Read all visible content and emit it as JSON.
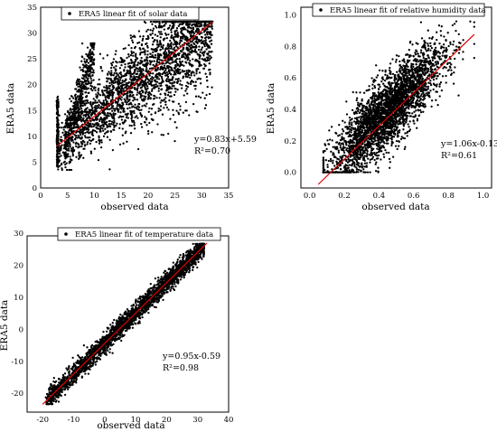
{
  "chart_data": [
    {
      "id": "solar",
      "type": "scatter",
      "legend": "ERA5 linear fit of solar data",
      "xlabel": "observed data",
      "ylabel": "ERA5 data",
      "xlim": [
        0,
        35
      ],
      "ylim": [
        0,
        35
      ],
      "xticks": [
        "0",
        "5",
        "10",
        "15",
        "20",
        "25",
        "30",
        "35"
      ],
      "yticks": [
        "0",
        "5",
        "10",
        "15",
        "20",
        "25",
        "30",
        "35"
      ],
      "fit": {
        "slope": 0.83,
        "intercept": 5.59,
        "x_range": [
          3,
          32
        ]
      },
      "equation": "y=0.83x+5.59",
      "r2": "R²=0.70",
      "legend_position": "top-left",
      "grid": false,
      "point_color": "#000000",
      "fit_color": "#e00000"
    },
    {
      "id": "humidity",
      "type": "scatter",
      "legend": "ERA5 linear fit of relative humidity data",
      "xlabel": "observed data",
      "ylabel": "ERA5 data",
      "xlim": [
        -0.05,
        1.05
      ],
      "ylim": [
        -0.1,
        1.05
      ],
      "xticks": [
        "0.0",
        "0.2",
        "0.4",
        "0.6",
        "0.8",
        "1.0"
      ],
      "yticks": [
        "0.0",
        "0.2",
        "0.4",
        "0.6",
        "0.8",
        "1.0"
      ],
      "fit": {
        "slope": 1.06,
        "intercept": -0.13,
        "x_range": [
          0.05,
          0.95
        ]
      },
      "equation": "y=1.06x-0.13",
      "r2": "R²=0.61",
      "legend_position": "top",
      "grid": false,
      "point_color": "#000000",
      "fit_color": "#e00000"
    },
    {
      "id": "temperature",
      "type": "scatter",
      "legend": "ERA5 linear fit of temperature data",
      "xlabel": "observed data",
      "ylabel": "ERA5 data",
      "xlim": [
        -25,
        40
      ],
      "ylim": [
        -22,
        33
      ],
      "xticks": [
        "-20",
        "-10",
        "0",
        "10",
        "20",
        "30",
        "40"
      ],
      "yticks": [
        "-20",
        "-10",
        "0",
        "10",
        "20",
        "30"
      ],
      "fit": {
        "slope": 0.95,
        "intercept": -0.59,
        "x_range": [
          -20,
          33
        ]
      },
      "equation": "y=0.95x-0.59",
      "r2": "R²=0.98",
      "legend_position": "top",
      "grid": false,
      "point_color": "#000000",
      "fit_color": "#e00000"
    }
  ]
}
